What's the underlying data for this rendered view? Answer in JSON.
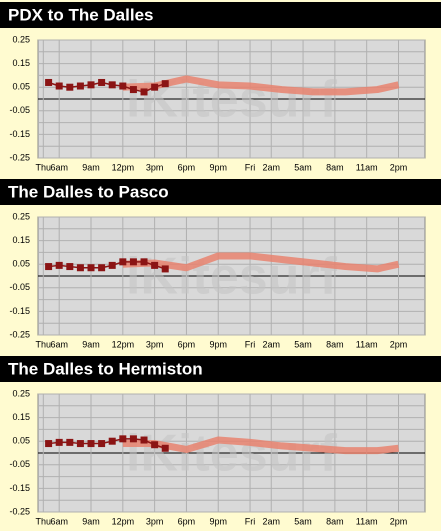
{
  "chart_data": [
    {
      "type": "line",
      "title": "PDX to The Dalles",
      "watermark": "iKitesurf",
      "xlim": [
        4,
        40.5
      ],
      "ylim": [
        -0.25,
        0.25
      ],
      "xticks": [
        {
          "value": 4.5,
          "label": "Thu"
        },
        {
          "value": 6,
          "label": "6am"
        },
        {
          "value": 9,
          "label": "9am"
        },
        {
          "value": 12,
          "label": "12pm"
        },
        {
          "value": 15,
          "label": "3pm"
        },
        {
          "value": 18,
          "label": "6pm"
        },
        {
          "value": 21,
          "label": "9pm"
        },
        {
          "value": 24,
          "label": "Fri"
        },
        {
          "value": 26,
          "label": "2am"
        },
        {
          "value": 29,
          "label": "5am"
        },
        {
          "value": 32,
          "label": "8am"
        },
        {
          "value": 35,
          "label": "11am"
        },
        {
          "value": 38,
          "label": "2pm"
        }
      ],
      "yticks": [
        0.25,
        0.15,
        0.05,
        -0.05,
        -0.15,
        -0.25
      ],
      "minor_yticks": [
        0.2,
        0.1,
        0,
        -0.1,
        -0.2
      ],
      "grid": true,
      "series": [
        {
          "color": "#e8836f",
          "x": [
            12,
            15,
            18,
            21,
            24,
            27,
            30,
            33,
            36,
            38
          ],
          "values": [
            0.05,
            0.055,
            0.085,
            0.06,
            0.055,
            0.04,
            0.03,
            0.03,
            0.04,
            0.06
          ]
        },
        {
          "color": "#8b1414",
          "marker": "square",
          "x": [
            5,
            6,
            7,
            8,
            9,
            10,
            11,
            12,
            13,
            14,
            15,
            16
          ],
          "values": [
            0.07,
            0.055,
            0.05,
            0.055,
            0.06,
            0.07,
            0.06,
            0.055,
            0.04,
            0.03,
            0.05,
            0.065
          ]
        }
      ]
    },
    {
      "type": "line",
      "title": "The Dalles to Pasco",
      "watermark": "iKitesurf",
      "xlim": [
        4,
        40.5
      ],
      "ylim": [
        -0.25,
        0.25
      ],
      "xticks": [
        {
          "value": 4.5,
          "label": "Thu"
        },
        {
          "value": 6,
          "label": "6am"
        },
        {
          "value": 9,
          "label": "9am"
        },
        {
          "value": 12,
          "label": "12pm"
        },
        {
          "value": 15,
          "label": "3pm"
        },
        {
          "value": 18,
          "label": "6pm"
        },
        {
          "value": 21,
          "label": "9pm"
        },
        {
          "value": 24,
          "label": "Fri"
        },
        {
          "value": 26,
          "label": "2am"
        },
        {
          "value": 29,
          "label": "5am"
        },
        {
          "value": 32,
          "label": "8am"
        },
        {
          "value": 35,
          "label": "11am"
        },
        {
          "value": 38,
          "label": "2pm"
        }
      ],
      "yticks": [
        0.25,
        0.15,
        0.05,
        -0.05,
        -0.15,
        -0.25
      ],
      "minor_yticks": [
        0.2,
        0.1,
        0,
        -0.1,
        -0.2
      ],
      "grid": true,
      "series": [
        {
          "color": "#e8836f",
          "x": [
            12,
            15,
            18,
            21,
            24,
            27,
            30,
            33,
            36,
            38
          ],
          "values": [
            0.05,
            0.055,
            0.035,
            0.085,
            0.085,
            0.07,
            0.055,
            0.04,
            0.03,
            0.05
          ]
        },
        {
          "color": "#8b1414",
          "marker": "square",
          "x": [
            5,
            6,
            7,
            8,
            9,
            10,
            11,
            12,
            13,
            14,
            15,
            16
          ],
          "values": [
            0.04,
            0.045,
            0.04,
            0.035,
            0.035,
            0.035,
            0.045,
            0.06,
            0.06,
            0.06,
            0.045,
            0.03
          ]
        }
      ]
    },
    {
      "type": "line",
      "title": "The Dalles to Hermiston",
      "watermark": "iKitesurf",
      "xlim": [
        4,
        40.5
      ],
      "ylim": [
        -0.25,
        0.25
      ],
      "xticks": [
        {
          "value": 4.5,
          "label": "Thu"
        },
        {
          "value": 6,
          "label": "6am"
        },
        {
          "value": 9,
          "label": "9am"
        },
        {
          "value": 12,
          "label": "12pm"
        },
        {
          "value": 15,
          "label": "3pm"
        },
        {
          "value": 18,
          "label": "6pm"
        },
        {
          "value": 21,
          "label": "9pm"
        },
        {
          "value": 24,
          "label": "Fri"
        },
        {
          "value": 26,
          "label": "2am"
        },
        {
          "value": 29,
          "label": "5am"
        },
        {
          "value": 32,
          "label": "8am"
        },
        {
          "value": 35,
          "label": "11am"
        },
        {
          "value": 38,
          "label": "2pm"
        }
      ],
      "yticks": [
        0.25,
        0.15,
        0.05,
        -0.05,
        -0.15,
        -0.25
      ],
      "minor_yticks": [
        0.2,
        0.1,
        0,
        -0.1,
        -0.2
      ],
      "grid": true,
      "series": [
        {
          "color": "#e8836f",
          "x": [
            12,
            15,
            18,
            21,
            24,
            27,
            30,
            33,
            36,
            38
          ],
          "values": [
            0.04,
            0.04,
            0.015,
            0.055,
            0.045,
            0.03,
            0.02,
            0.01,
            0.01,
            0.02
          ]
        },
        {
          "color": "#8b1414",
          "marker": "square",
          "x": [
            5,
            6,
            7,
            8,
            9,
            10,
            11,
            12,
            13,
            14,
            15,
            16
          ],
          "values": [
            0.04,
            0.045,
            0.045,
            0.04,
            0.04,
            0.04,
            0.05,
            0.06,
            0.06,
            0.055,
            0.035,
            0.02
          ]
        }
      ]
    }
  ]
}
